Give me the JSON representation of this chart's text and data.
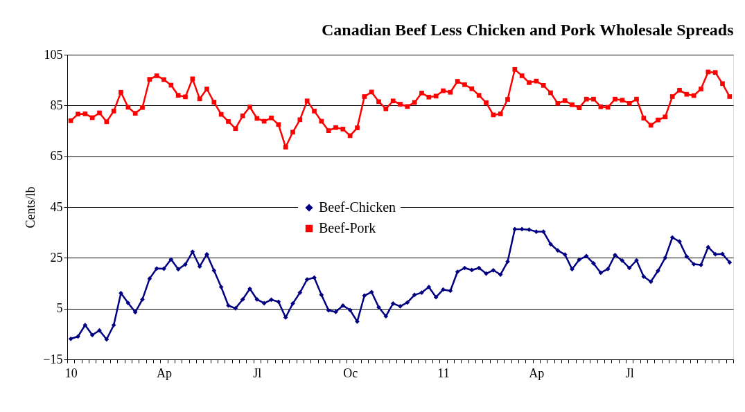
{
  "chart_data": {
    "type": "line",
    "title": "Canadian Beef Less Chicken and Pork Wholesale Spreads",
    "ylabel": "Cents/lb",
    "categories": [
      "10",
      null,
      null,
      null,
      null,
      null,
      null,
      null,
      null,
      null,
      null,
      null,
      null,
      "Ap",
      null,
      null,
      null,
      null,
      null,
      null,
      null,
      null,
      null,
      null,
      null,
      null,
      "Jl",
      null,
      null,
      null,
      null,
      null,
      null,
      null,
      null,
      null,
      null,
      null,
      null,
      "Oc",
      null,
      null,
      null,
      null,
      null,
      null,
      null,
      null,
      null,
      null,
      null,
      null,
      "11",
      null,
      null,
      null,
      null,
      null,
      null,
      null,
      null,
      null,
      null,
      null,
      null,
      "Ap",
      null,
      null,
      null,
      null,
      null,
      null,
      null,
      null,
      null,
      null,
      null,
      null,
      "Jl",
      null,
      null,
      null,
      null,
      null,
      null,
      null,
      null,
      null,
      null,
      null,
      null,
      null,
      null
    ],
    "series": [
      {
        "name": "Beef-Chicken",
        "color": "#000080",
        "marker": "diamond",
        "values": [
          -6.9,
          -6.0,
          -1.5,
          -5.4,
          -3.6,
          -7.1,
          -1.5,
          11.1,
          7.2,
          3.6,
          8.6,
          16.8,
          20.8,
          20.7,
          24.4,
          20.5,
          22.4,
          27.4,
          21.6,
          26.4,
          20.0,
          13.5,
          6.2,
          5.1,
          8.6,
          12.8,
          8.6,
          7.1,
          8.5,
          7.7,
          1.5,
          7.0,
          11.3,
          16.5,
          17.2,
          10.4,
          4.3,
          3.7,
          6.2,
          4.4,
          -0.1,
          10.1,
          11.5,
          5.5,
          2.0,
          7.0,
          5.9,
          7.4,
          10.4,
          11.3,
          13.5,
          9.5,
          12.5,
          12.0,
          19.5,
          21.0,
          20.2,
          21.0,
          18.8,
          20.1,
          18.4,
          23.5,
          36.3,
          36.3,
          36.1,
          35.3,
          35.3,
          30.4,
          27.9,
          26.3,
          20.5,
          24.3,
          25.7,
          22.8,
          19.1,
          20.6,
          26.1,
          23.9,
          21.0,
          24.0,
          17.6,
          15.6,
          19.9,
          25.0,
          33.0,
          31.4,
          25.5,
          22.5,
          22.2,
          29.2,
          26.4,
          26.5,
          23.2
        ]
      },
      {
        "name": "Beef-Pork",
        "color": "#ff0000",
        "marker": "square",
        "values": [
          79.0,
          81.6,
          81.7,
          80.2,
          82.1,
          78.6,
          82.8,
          90.2,
          84.3,
          81.9,
          84.2,
          95.3,
          96.7,
          95.2,
          93.0,
          89.0,
          88.4,
          95.5,
          87.6,
          91.5,
          86.3,
          81.5,
          78.7,
          75.9,
          80.9,
          84.4,
          79.9,
          78.8,
          80.1,
          77.5,
          68.6,
          74.5,
          79.4,
          86.8,
          82.8,
          78.8,
          75.1,
          76.3,
          75.7,
          73.1,
          76.2,
          88.5,
          90.3,
          86.5,
          83.7,
          86.8,
          85.5,
          84.6,
          86.2,
          89.9,
          88.3,
          88.7,
          90.8,
          90.2,
          94.5,
          93.2,
          91.6,
          89.0,
          86.1,
          81.3,
          81.7,
          87.4,
          99.2,
          96.7,
          94.0,
          94.6,
          92.9,
          90.0,
          85.8,
          86.9,
          85.3,
          84.1,
          87.5,
          87.5,
          84.5,
          84.3,
          87.5,
          87.1,
          85.8,
          87.5,
          80.0,
          77.2,
          79.3,
          80.5,
          88.5,
          91.0,
          89.4,
          88.9,
          91.5,
          98.2,
          98.0,
          93.6,
          88.5
        ]
      }
    ],
    "ylim": [
      -15,
      105
    ],
    "yticks": [
      -15,
      5,
      25,
      45,
      65,
      85,
      105
    ],
    "grid": "y",
    "legend": "center",
    "line_style": "solid"
  }
}
